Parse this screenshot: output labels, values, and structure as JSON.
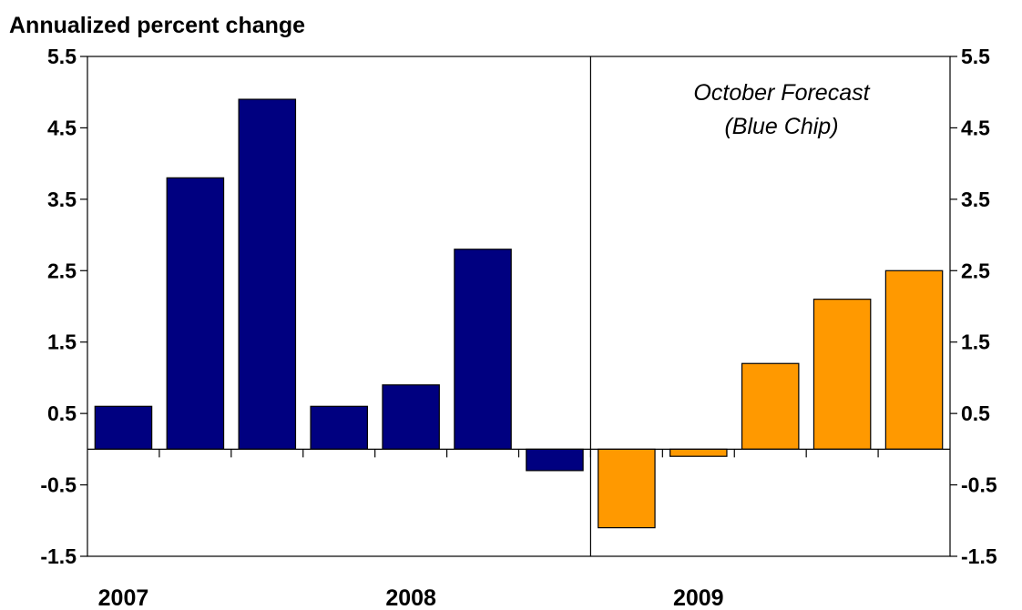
{
  "chart_data": {
    "type": "bar",
    "ylabel": "Annualized percent change",
    "title": "",
    "xlabel": "",
    "yticks": [
      "5.5",
      "4.5",
      "3.5",
      "2.5",
      "1.5",
      "0.5",
      "-0.5",
      "-1.5"
    ],
    "ylim": [
      -1.5,
      5.5
    ],
    "year_labels": [
      "2007",
      "2008",
      "2009"
    ],
    "values": [
      0.6,
      3.8,
      4.9,
      0.6,
      0.9,
      2.8,
      -0.3,
      -1.1,
      -0.1,
      1.2,
      2.1,
      2.5
    ],
    "actual_color": "#000080",
    "forecast_color": "#FF9900",
    "forecast_start_index": 7,
    "annotation": [
      "October Forecast",
      "(Blue Chip)"
    ],
    "grid": false,
    "legend": "none"
  }
}
